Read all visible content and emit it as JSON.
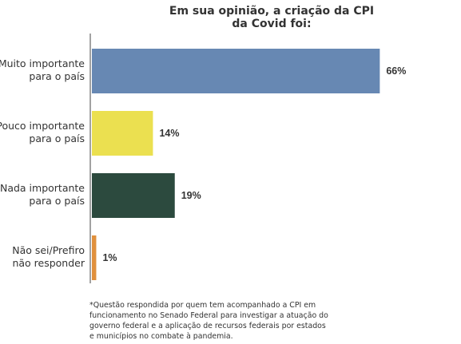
{
  "chart_data": {
    "type": "bar",
    "orientation": "horizontal",
    "title": "Em sua opinião, a criação da CPI da Covid foi:",
    "categories": [
      "Muito importante para o país",
      "Pouco importante para o país",
      "Nada importante para o país",
      "Não sei/Prefiro não responder"
    ],
    "category_lines": [
      [
        "Muito importante",
        "para o país"
      ],
      [
        "Pouco importante",
        "para o país"
      ],
      [
        "Nada importante",
        "para o país"
      ],
      [
        "Não sei/Prefiro",
        "não responder"
      ]
    ],
    "values": [
      66,
      14,
      19,
      1
    ],
    "value_labels": [
      "66%",
      "14%",
      "19%",
      "1%"
    ],
    "colors": [
      "#6788b3",
      "#ebe050",
      "#2c4a3e",
      "#e0903d"
    ],
    "xlim": [
      0,
      100
    ],
    "grid": false,
    "legend": "none"
  },
  "footnote": "*Questão respondida por quem tem acompanhado a CPI em funcionamento no Senado Federal para investigar a atuação do governo federal e a aplicação de recursos federais por estados e municípios no combate à pandemia."
}
